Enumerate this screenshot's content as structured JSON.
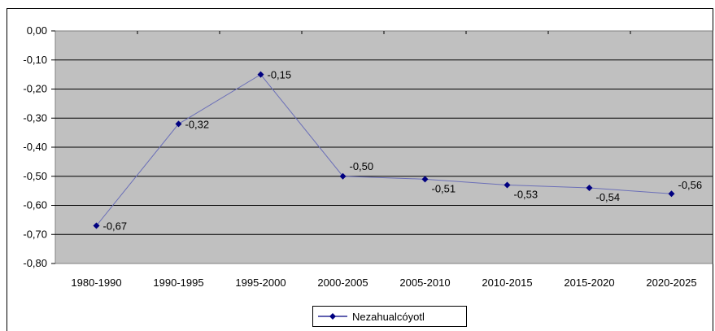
{
  "chart_data": {
    "type": "line",
    "title": "",
    "xlabel": "",
    "ylabel": "",
    "categories": [
      "1980-1990",
      "1990-1995",
      "1995-2000",
      "2000-2005",
      "2005-2010",
      "2010-2015",
      "2015-2020",
      "2020-2025"
    ],
    "series": [
      {
        "name": "Nezahualcóyotl",
        "values": [
          -0.67,
          -0.32,
          -0.15,
          -0.5,
          -0.51,
          -0.53,
          -0.54,
          -0.56
        ],
        "labels": [
          "-0,67",
          "-0,32",
          "-0,15",
          "-0,50",
          "-0,51",
          "-0,53",
          "-0,54",
          "-0,56"
        ],
        "color": "#000080"
      }
    ],
    "ylim": [
      -0.8,
      0.0
    ],
    "yticks": [
      0.0,
      -0.1,
      -0.2,
      -0.3,
      -0.4,
      -0.5,
      -0.6,
      -0.7,
      -0.8
    ],
    "ytick_labels": [
      "0,00",
      "-0,10",
      "-0,20",
      "-0,30",
      "-0,40",
      "-0,50",
      "-0,60",
      "-0,70",
      "-0,80"
    ],
    "grid": true,
    "legend_position": "bottom",
    "plot_background": "#C0C0C0",
    "gridline_color": "#000000"
  }
}
